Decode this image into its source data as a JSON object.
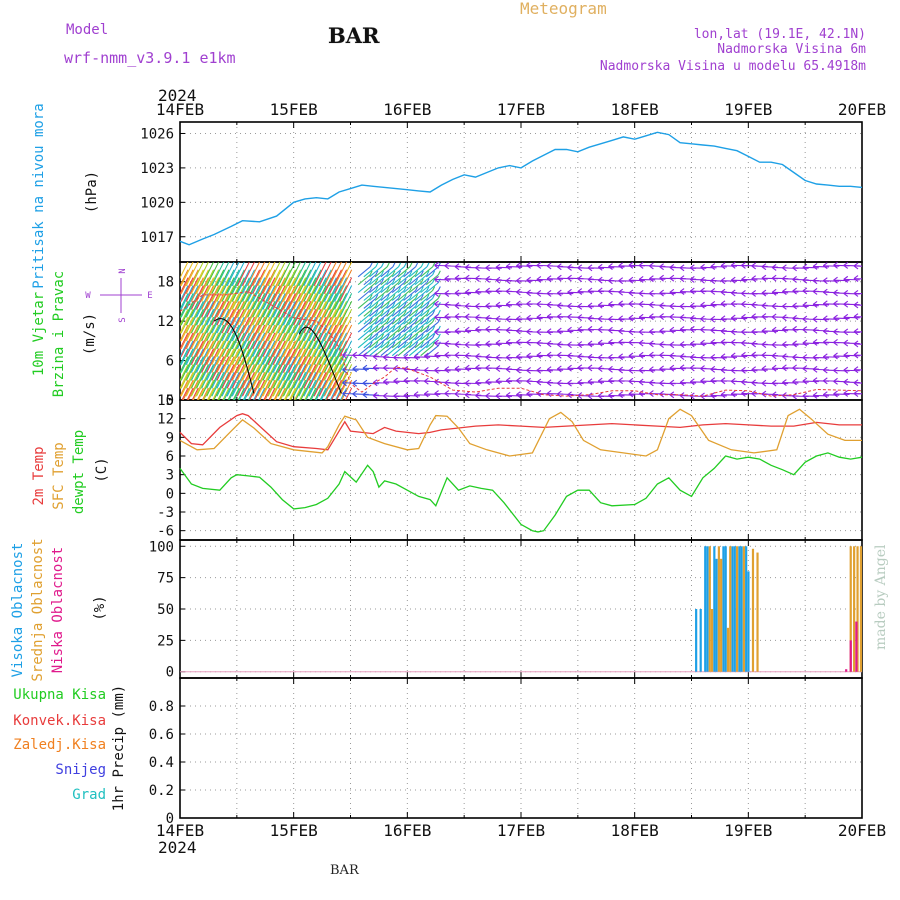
{
  "header": {
    "model_label": "Model",
    "model_name": "wrf-nmm_v3.9.1 e1km",
    "station": "BAR",
    "title": "Meteogram",
    "lonlat": "lon,lat (19.1E, 42.1N)",
    "elevation": "Nadmorska Visina 6m",
    "model_elevation": "Nadmorska Visina u modelu 65.4918m",
    "year": "2024",
    "footer_station": "BAR",
    "credit": "made by Angel"
  },
  "colors": {
    "pressure": "#1ea0e6",
    "t2m": "#e83c3c",
    "sfc": "#e0a030",
    "dewpt": "#22cc22",
    "high_cloud": "#1ea0e6",
    "mid_cloud": "#e0a030",
    "low_cloud": "#e01a8c",
    "title": "#e0b060",
    "meta": "#a040d0",
    "wind_lo": "#8a20e0",
    "total_precip": "#22cc22",
    "conv_precip": "#e83c3c",
    "frz_precip": "#f08020",
    "snow": "#4040e0",
    "graupel": "#20c0c0",
    "credit": "#b8ccc0"
  },
  "chart_data": [
    {
      "type": "line",
      "name": "pressure",
      "ylabel_main": "Pritisak na nivou mora",
      "ylabel_unit": "(hPa)",
      "x_ticks": [
        "14FEB",
        "15FEB",
        "16FEB",
        "17FEB",
        "18FEB",
        "19FEB",
        "20FEB"
      ],
      "ylim": [
        1014.8,
        1027.0
      ],
      "yticks": [
        "1017",
        "1020",
        "1023",
        "1026"
      ],
      "grid": true,
      "series": [
        {
          "x": [
            0,
            0.08,
            0.2,
            0.3,
            0.45,
            0.55,
            0.7,
            0.85,
            1.0,
            1.1,
            1.2,
            1.3,
            1.4,
            1.5,
            1.6,
            1.7,
            1.8,
            1.9,
            2.0,
            2.1,
            2.2,
            2.3,
            2.4,
            2.5,
            2.6,
            2.7,
            2.8,
            2.9,
            3.0,
            3.1,
            3.2,
            3.3,
            3.4,
            3.5,
            3.6,
            3.7,
            3.8,
            3.9,
            4.0,
            4.1,
            4.2,
            4.3,
            4.4,
            4.5,
            4.6,
            4.7,
            4.8,
            4.9,
            5.0,
            5.1,
            5.2,
            5.3,
            5.4,
            5.5,
            5.6,
            5.7,
            5.8,
            5.9,
            6.0
          ],
          "y": [
            1016.6,
            1016.3,
            1016.8,
            1017.2,
            1017.9,
            1018.4,
            1018.3,
            1018.8,
            1020.0,
            1020.3,
            1020.4,
            1020.3,
            1020.9,
            1021.2,
            1021.5,
            1021.4,
            1021.3,
            1021.2,
            1021.1,
            1021.0,
            1020.9,
            1021.5,
            1022.0,
            1022.4,
            1022.2,
            1022.6,
            1023.0,
            1023.2,
            1023.0,
            1023.6,
            1024.1,
            1024.6,
            1024.6,
            1024.4,
            1024.8,
            1025.1,
            1025.4,
            1025.7,
            1025.5,
            1025.8,
            1026.1,
            1025.9,
            1025.2,
            1025.1,
            1025.0,
            1024.9,
            1024.7,
            1024.5,
            1024.0,
            1023.5,
            1023.5,
            1023.3,
            1022.6,
            1021.9,
            1021.6,
            1021.5,
            1021.4,
            1021.4,
            1021.3
          ]
        }
      ]
    },
    {
      "type": "line",
      "name": "wind",
      "ylabel_main": "10m Vjetar",
      "ylabel_sub": "Brzina i Pravac",
      "ylabel_unit": "(m/s)",
      "compass": {
        "n": "N",
        "s": "S",
        "e": "E",
        "w": "W"
      },
      "ylim": [
        0,
        21
      ],
      "yticks": [
        "0",
        "6",
        "12",
        "18"
      ],
      "grid": true,
      "series": [
        {
          "x": [
            0,
            0.2,
            0.4,
            0.6,
            0.8,
            1.0,
            1.2,
            1.3,
            1.4,
            1.5,
            1.6,
            1.7,
            1.8,
            1.9,
            2.0,
            2.2,
            2.4,
            2.6,
            2.8,
            3.0,
            3.2,
            3.4,
            3.6,
            3.8,
            4.0,
            4.2,
            4.4,
            4.6,
            4.8,
            5.0,
            5.2,
            5.4,
            5.6,
            5.8,
            6.0
          ],
          "y": [
            13.5,
            16.0,
            16.0,
            16.5,
            14.5,
            12.5,
            12.0,
            10.5,
            8.0,
            2.5,
            1.2,
            2.5,
            3.5,
            5.0,
            4.8,
            3.5,
            1.5,
            1.2,
            1.8,
            1.8,
            0.8,
            0.6,
            0.8,
            1.4,
            1.4,
            0.8,
            0.8,
            0.6,
            1.5,
            1.4,
            0.6,
            0.8,
            1.6,
            1.5,
            1.4
          ]
        }
      ]
    },
    {
      "type": "line",
      "name": "temperature",
      "ylabel_t2m": "2m Temp",
      "ylabel_sfc": "SFC Temp",
      "ylabel_dew": "dewpt Temp",
      "ylabel_unit": "(C)",
      "ylim": [
        -7.5,
        15
      ],
      "yticks": [
        "-6",
        "-3",
        "0",
        "3",
        "6",
        "9",
        "12",
        "15"
      ],
      "grid": true,
      "series": [
        {
          "name_key": "t2m",
          "x": [
            0,
            0.1,
            0.2,
            0.35,
            0.5,
            0.55,
            0.6,
            0.7,
            0.85,
            1.0,
            1.2,
            1.3,
            1.4,
            1.45,
            1.5,
            1.6,
            1.7,
            1.8,
            1.9,
            2.0,
            2.1,
            2.2,
            2.3,
            2.4,
            2.6,
            2.8,
            3.0,
            3.2,
            3.4,
            3.6,
            3.8,
            4.0,
            4.2,
            4.4,
            4.6,
            4.8,
            5.0,
            5.2,
            5.4,
            5.6,
            5.8,
            6.0
          ],
          "y": [
            9.8,
            8.0,
            7.8,
            10.6,
            12.5,
            12.8,
            12.5,
            10.8,
            8.3,
            7.5,
            7.2,
            7.0,
            10.0,
            11.5,
            10.0,
            9.8,
            9.6,
            10.6,
            10.0,
            9.8,
            9.6,
            9.8,
            10.2,
            10.4,
            10.8,
            11.0,
            10.8,
            10.6,
            10.8,
            11.0,
            11.2,
            11.0,
            10.8,
            10.6,
            11.0,
            11.2,
            11.0,
            10.8,
            10.8,
            11.4,
            11.0,
            11.0
          ]
        },
        {
          "name_key": "sfc",
          "x": [
            0,
            0.15,
            0.3,
            0.45,
            0.55,
            0.65,
            0.8,
            1.0,
            1.25,
            1.3,
            1.4,
            1.45,
            1.55,
            1.65,
            1.8,
            2.0,
            2.1,
            2.2,
            2.25,
            2.35,
            2.45,
            2.55,
            2.7,
            2.9,
            3.1,
            3.25,
            3.35,
            3.45,
            3.55,
            3.7,
            3.9,
            4.1,
            4.2,
            4.3,
            4.4,
            4.5,
            4.65,
            4.85,
            5.05,
            5.25,
            5.35,
            5.45,
            5.55,
            5.7,
            5.85,
            6.0
          ],
          "y": [
            8.5,
            7.0,
            7.2,
            10.0,
            11.8,
            10.5,
            8.0,
            7.0,
            6.5,
            7.5,
            11.0,
            12.4,
            11.8,
            9.0,
            8.0,
            7.0,
            7.2,
            11.0,
            12.5,
            12.4,
            10.5,
            8.0,
            7.0,
            6.0,
            6.5,
            12.0,
            13.0,
            11.5,
            8.5,
            7.0,
            6.5,
            6.0,
            7.0,
            12.0,
            13.5,
            12.5,
            8.5,
            7.0,
            6.5,
            7.0,
            12.5,
            13.5,
            12.0,
            9.5,
            8.5,
            8.5
          ]
        },
        {
          "name_key": "dewpt",
          "x": [
            0,
            0.1,
            0.2,
            0.35,
            0.45,
            0.5,
            0.6,
            0.7,
            0.8,
            0.9,
            1.0,
            1.1,
            1.2,
            1.3,
            1.4,
            1.45,
            1.55,
            1.65,
            1.7,
            1.75,
            1.8,
            1.9,
            2.0,
            2.1,
            2.2,
            2.25,
            2.35,
            2.45,
            2.55,
            2.65,
            2.75,
            2.85,
            3.0,
            3.1,
            3.15,
            3.2,
            3.3,
            3.4,
            3.5,
            3.6,
            3.7,
            3.8,
            4.0,
            4.1,
            4.2,
            4.3,
            4.4,
            4.5,
            4.6,
            4.7,
            4.8,
            4.9,
            5.0,
            5.1,
            5.2,
            5.3,
            5.4,
            5.5,
            5.6,
            5.7,
            5.8,
            5.9,
            6.0
          ],
          "y": [
            4.0,
            1.5,
            0.8,
            0.5,
            2.5,
            3.0,
            2.8,
            2.6,
            1.0,
            -1.0,
            -2.5,
            -2.3,
            -1.8,
            -0.8,
            1.5,
            3.5,
            1.8,
            4.5,
            3.5,
            1.0,
            2.0,
            1.5,
            0.5,
            -0.5,
            -1.0,
            -2.0,
            2.5,
            0.5,
            1.2,
            0.8,
            0.5,
            -1.5,
            -5.0,
            -6.0,
            -6.2,
            -6.0,
            -3.5,
            -0.5,
            0.5,
            0.5,
            -1.5,
            -2.0,
            -1.8,
            -0.8,
            1.5,
            2.5,
            0.5,
            -0.5,
            2.5,
            4.0,
            6.0,
            5.5,
            5.8,
            5.5,
            4.5,
            3.8,
            3.0,
            5.0,
            6.0,
            6.5,
            5.8,
            5.5,
            5.8
          ]
        }
      ]
    },
    {
      "type": "bar",
      "name": "cloud",
      "ylabel_high": "Visoka Oblacnost",
      "ylabel_mid": "Srednja Oblacnost",
      "ylabel_low": "Niska Oblacnost",
      "ylabel_unit": "(%)",
      "ylim": [
        -5,
        105
      ],
      "yticks": [
        "0",
        "25",
        "50",
        "75",
        "100"
      ],
      "grid": true,
      "series": [
        {
          "name_key": "high_cloud",
          "x": [
            4.54,
            4.58,
            4.62,
            4.64,
            4.7,
            4.72,
            4.78,
            4.8,
            4.86,
            4.88,
            4.92,
            4.94,
            4.98,
            5.0
          ],
          "values": [
            50,
            50,
            100,
            100,
            100,
            90,
            100,
            100,
            100,
            100,
            100,
            100,
            100,
            80
          ]
        },
        {
          "name_key": "mid_cloud",
          "x": [
            4.66,
            4.68,
            4.74,
            4.76,
            4.82,
            4.84,
            4.9,
            4.96,
            5.04,
            5.08,
            5.9,
            5.93,
            5.96,
            5.99
          ],
          "values": [
            100,
            50,
            100,
            90,
            35,
            100,
            100,
            100,
            98,
            95,
            100,
            100,
            100,
            100
          ]
        },
        {
          "name_key": "low_cloud",
          "x": [
            5.86,
            5.9,
            5.95
          ],
          "values": [
            2,
            25,
            40
          ]
        }
      ]
    },
    {
      "type": "bar",
      "name": "precip",
      "ylabel_unit": "1hr Precip (mm)",
      "legend": [
        "Ukupna Kisa",
        "Konvek.Kisa",
        "Zaledj.Kisa",
        "Snijeg",
        "Grad"
      ],
      "ylim": [
        0,
        1.0
      ],
      "yticks": [
        "0",
        "0.2",
        "0.4",
        "0.6",
        "0.8"
      ],
      "grid": true,
      "series": []
    }
  ]
}
